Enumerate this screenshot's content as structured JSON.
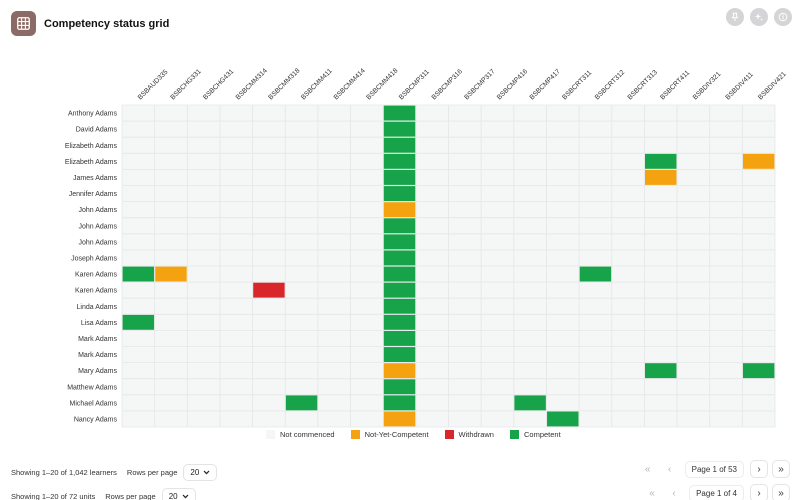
{
  "header": {
    "title": "Competency status grid",
    "icon": "grid-icon"
  },
  "top_actions": [
    {
      "name": "pin-icon"
    },
    {
      "name": "sparkle-icon"
    },
    {
      "name": "info-icon"
    }
  ],
  "colors": {
    "not_commenced": "#f5f6f6",
    "nyc": "#f4a20f",
    "withdrawn": "#d9262b",
    "competent": "#16a34a",
    "grid_line": "#e4e6e8"
  },
  "units": [
    "BSBAUD335",
    "BSBCHG331",
    "BSBCHG431",
    "BSBCMM314",
    "BSBCMM318",
    "BSBCMM411",
    "BSBCMM414",
    "BSBCMM418",
    "BSBCMP311",
    "BSBCMP316",
    "BSBCMP317",
    "BSBCMP416",
    "BSBCMP417",
    "BSBCRT311",
    "BSBCRT312",
    "BSBCRT313",
    "BSBCRT411",
    "BSBDIV321",
    "BSBDIV411",
    "BSBDIV421"
  ],
  "learners": [
    "Anthony Adams",
    "David Adams",
    "Elizabeth Adams",
    "Elizabeth Adams",
    "James Adams",
    "Jennifer Adams",
    "John Adams",
    "John Adams",
    "John Adams",
    "Joseph Adams",
    "Karen Adams",
    "Karen Adams",
    "Linda Adams",
    "Lisa Adams",
    "Mark Adams",
    "Mark Adams",
    "Mary Adams",
    "Matthew Adams",
    "Michael Adams",
    "Nancy Adams"
  ],
  "statuses": [
    "________C___________",
    "________C___________",
    "________C___________",
    "________C_______C__N",
    "________C_______N___",
    "________C___________",
    "________N___________",
    "________C___________",
    "________C___________",
    "________C___________",
    "CN______C_____C_____",
    "____W___C___________",
    "________C___________",
    "C_______C___________",
    "________C___________",
    "________C___________",
    "________N_______C__C",
    "________C___________",
    "_____C__C___C_______",
    "________N____C______"
  ],
  "legend": [
    {
      "key": "not_commenced",
      "label": "Not commenced"
    },
    {
      "key": "nyc",
      "label": "Not-Yet-Competent"
    },
    {
      "key": "withdrawn",
      "label": "Withdrawn"
    },
    {
      "key": "competent",
      "label": "Competent"
    }
  ],
  "learners_pager": {
    "showing": "Showing 1–20 of 1,042 learners",
    "rows_label": "Rows per page",
    "rows_value": "20",
    "page": "Page 1 of 53"
  },
  "units_pager": {
    "showing": "Showing 1–20 of 72 units",
    "rows_label": "Rows per page",
    "rows_value": "20",
    "page": "Page 1 of 4"
  }
}
